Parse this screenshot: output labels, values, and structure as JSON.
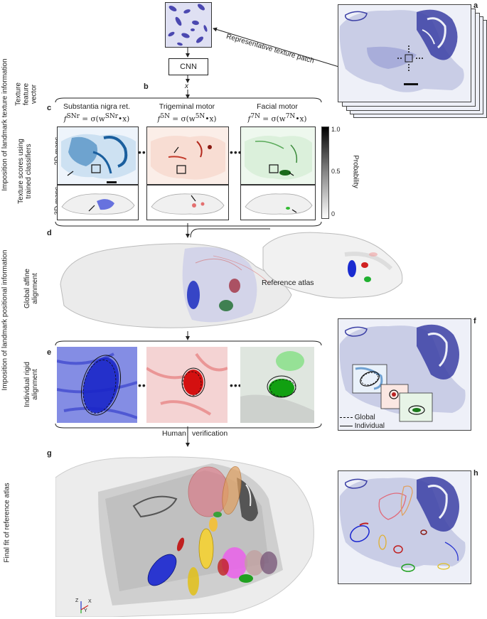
{
  "panels": {
    "a": "a",
    "b": "b",
    "c": "c",
    "d": "d",
    "e": "e",
    "f": "f",
    "g": "g",
    "h": "h"
  },
  "side_labels": {
    "texture_info": "Imposition of landmark texture information",
    "positional_info": "Imposition of landmark positional information",
    "final_fit": "Final fit of reference atlas",
    "texture_feature_vector": [
      "Texture",
      "feature",
      "vector"
    ],
    "texture_scores": [
      "Texture scores using",
      "trained classifiers"
    ],
    "global_affine": [
      "Global affine",
      "alignment"
    ],
    "individual_rigid": [
      "Individual rigid",
      "alignment"
    ]
  },
  "flow": {
    "cnn": "CNN",
    "x": "x",
    "representative_patch": "Representative texture patch",
    "reference_atlas": "Reference atlas",
    "human_verification_left": "Human",
    "human_verification_right": "verification"
  },
  "classifiers": [
    {
      "name": "Substantia nigra ret.",
      "f": "f",
      "sup": "SNr",
      "rest": " = σ(w",
      "wsup": "SNr",
      "end": "•x)"
    },
    {
      "name": "Trigeminal motor",
      "f": "f",
      "sup": "5N",
      "rest": " = σ(w",
      "wsup": "5N",
      "end": "•x)"
    },
    {
      "name": "Facial motor",
      "f": "f",
      "sup": "7N",
      "rest": " = σ(w",
      "wsup": "7N",
      "end": "•x)"
    }
  ],
  "map_rows": {
    "row2d": "2D maps",
    "row3d": "3D maps"
  },
  "colorbar": {
    "label": "Probability",
    "ticks": [
      "1.0",
      "0.5",
      "0"
    ]
  },
  "legend_f": {
    "global": "Global",
    "individual": "Individual"
  },
  "axes_g": {
    "z": "Z",
    "x": "X",
    "y": "Y"
  },
  "colors": {
    "snr": "#2233cc",
    "n5": "#dd2222",
    "n7": "#22aa22",
    "nissl": "#6a6fbf",
    "tissue_bg": "#c9cde6"
  }
}
